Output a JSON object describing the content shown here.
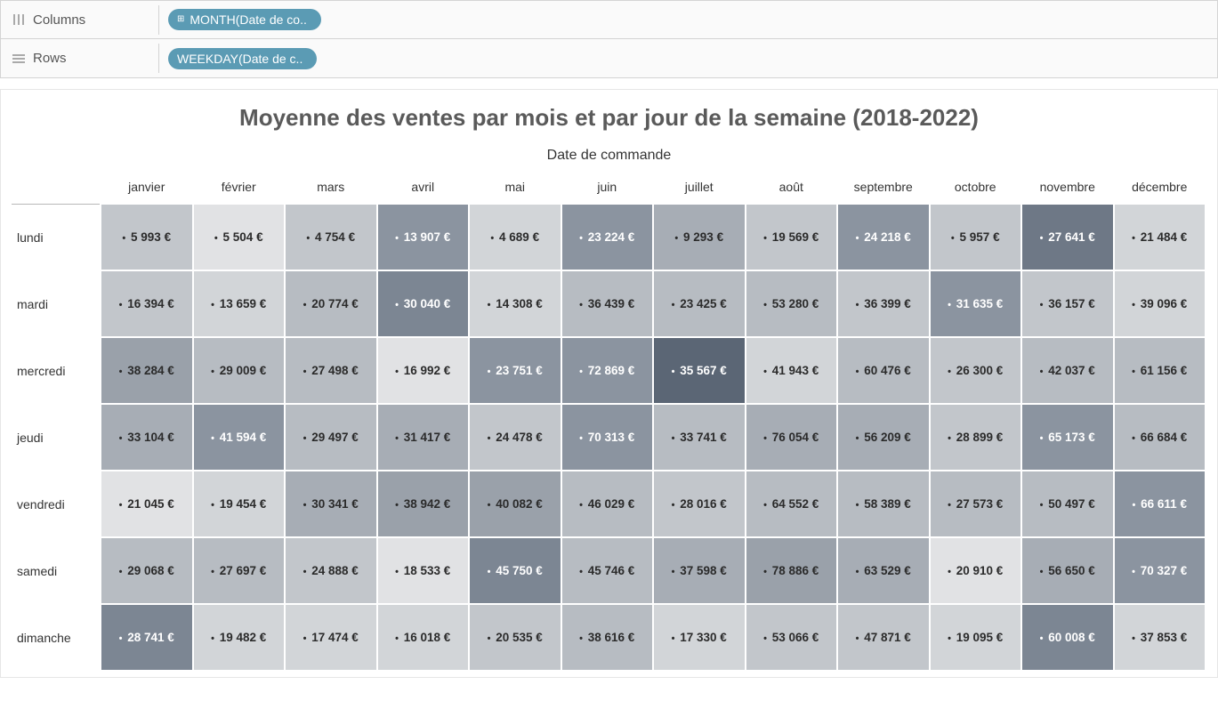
{
  "shelves": {
    "columns": {
      "label": "Columns",
      "pill": "MONTH(Date de co.."
    },
    "rows": {
      "label": "Rows",
      "pill": "WEEKDAY(Date de c.."
    }
  },
  "viz": {
    "title": "Moyenne des ventes par mois et par jour de la semaine (2018-2022)",
    "axis_label": "Date de commande",
    "currency_suffix": " €",
    "thousands_sep": " ",
    "pill_color": "#5b9bb4",
    "heatmap": {
      "type": "heatmap",
      "text_color_dark": "#2b2b2b",
      "text_color_light": "#ffffff",
      "light_text_threshold_shade": 6,
      "color_scale": {
        "0": "#e1e2e4",
        "1": "#d2d5d8",
        "2": "#c2c6cb",
        "3": "#b7bcc2",
        "4": "#a7adb5",
        "5": "#9aa1aa",
        "6": "#8b94a0",
        "7": "#7c8693",
        "8": "#6e7886",
        "9": "#5b6675"
      },
      "months": [
        "janvier",
        "février",
        "mars",
        "avril",
        "mai",
        "juillet_hdr_spacer",
        "juin",
        "juillet",
        "août",
        "septembre",
        "octobre",
        "novembre",
        "décembre"
      ],
      "months_display": [
        "janvier",
        "février",
        "mars",
        "avril",
        "mai",
        "juin",
        "juillet",
        "août",
        "septembre",
        "octobre",
        "novembre",
        "décembre"
      ],
      "weekdays": [
        "lundi",
        "mardi",
        "mercredi",
        "jeudi",
        "vendredi",
        "samedi",
        "dimanche"
      ],
      "cells": [
        [
          {
            "v": 5993,
            "s": 2
          },
          {
            "v": 5504,
            "s": 0
          },
          {
            "v": 4754,
            "s": 2
          },
          {
            "v": 13907,
            "s": 6
          },
          {
            "v": 4689,
            "s": 1
          },
          {
            "v": 23224,
            "s": 6
          },
          {
            "v": 9293,
            "s": 4
          },
          {
            "v": 19569,
            "s": 2
          },
          {
            "v": 24218,
            "s": 6
          },
          {
            "v": 5957,
            "s": 2
          },
          {
            "v": 27641,
            "s": 8
          },
          {
            "v": 21484,
            "s": 1
          }
        ],
        [
          {
            "v": 16394,
            "s": 2
          },
          {
            "v": 13659,
            "s": 1
          },
          {
            "v": 20774,
            "s": 3
          },
          {
            "v": 30040,
            "s": 7
          },
          {
            "v": 14308,
            "s": 1
          },
          {
            "v": 36439,
            "s": 3
          },
          {
            "v": 23425,
            "s": 3
          },
          {
            "v": 53280,
            "s": 3
          },
          {
            "v": 36399,
            "s": 2
          },
          {
            "v": 31635,
            "s": 6
          },
          {
            "v": 36157,
            "s": 2
          },
          {
            "v": 39096,
            "s": 1
          }
        ],
        [
          {
            "v": 38284,
            "s": 5
          },
          {
            "v": 29009,
            "s": 3
          },
          {
            "v": 27498,
            "s": 3
          },
          {
            "v": 16992,
            "s": 0
          },
          {
            "v": 23751,
            "s": 6
          },
          {
            "v": 72869,
            "s": 6
          },
          {
            "v": 35567,
            "s": 9
          },
          {
            "v": 41943,
            "s": 1
          },
          {
            "v": 60476,
            "s": 3
          },
          {
            "v": 26300,
            "s": 2
          },
          {
            "v": 42037,
            "s": 3
          },
          {
            "v": 61156,
            "s": 3
          }
        ],
        [
          {
            "v": 33104,
            "s": 4
          },
          {
            "v": 41594,
            "s": 6
          },
          {
            "v": 29497,
            "s": 3
          },
          {
            "v": 31417,
            "s": 4
          },
          {
            "v": 24478,
            "s": 2
          },
          {
            "v": 70313,
            "s": 6
          },
          {
            "v": 33741,
            "s": 3
          },
          {
            "v": 76054,
            "s": 4
          },
          {
            "v": 56209,
            "s": 4
          },
          {
            "v": 28899,
            "s": 2
          },
          {
            "v": 65173,
            "s": 6
          },
          {
            "v": 66684,
            "s": 3
          }
        ],
        [
          {
            "v": 21045,
            "s": 0
          },
          {
            "v": 19454,
            "s": 1
          },
          {
            "v": 30341,
            "s": 4
          },
          {
            "v": 38942,
            "s": 5
          },
          {
            "v": 40082,
            "s": 5
          },
          {
            "v": 46029,
            "s": 3
          },
          {
            "v": 28016,
            "s": 2
          },
          {
            "v": 64552,
            "s": 3
          },
          {
            "v": 58389,
            "s": 3
          },
          {
            "v": 27573,
            "s": 3
          },
          {
            "v": 50497,
            "s": 3
          },
          {
            "v": 66611,
            "s": 6
          }
        ],
        [
          {
            "v": 29068,
            "s": 3
          },
          {
            "v": 27697,
            "s": 3
          },
          {
            "v": 24888,
            "s": 2
          },
          {
            "v": 18533,
            "s": 0
          },
          {
            "v": 45750,
            "s": 7
          },
          {
            "v": 45746,
            "s": 3
          },
          {
            "v": 37598,
            "s": 4
          },
          {
            "v": 78886,
            "s": 5
          },
          {
            "v": 63529,
            "s": 4
          },
          {
            "v": 20910,
            "s": 0
          },
          {
            "v": 56650,
            "s": 4
          },
          {
            "v": 70327,
            "s": 6
          }
        ],
        [
          {
            "v": 28741,
            "s": 7
          },
          {
            "v": 19482,
            "s": 1
          },
          {
            "v": 17474,
            "s": 1
          },
          {
            "v": 16018,
            "s": 1
          },
          {
            "v": 20535,
            "s": 2
          },
          {
            "v": 38616,
            "s": 3
          },
          {
            "v": 17330,
            "s": 1
          },
          {
            "v": 53066,
            "s": 2
          },
          {
            "v": 47871,
            "s": 2
          },
          {
            "v": 19095,
            "s": 1
          },
          {
            "v": 60008,
            "s": 7
          },
          {
            "v": 37853,
            "s": 1
          }
        ]
      ]
    }
  }
}
